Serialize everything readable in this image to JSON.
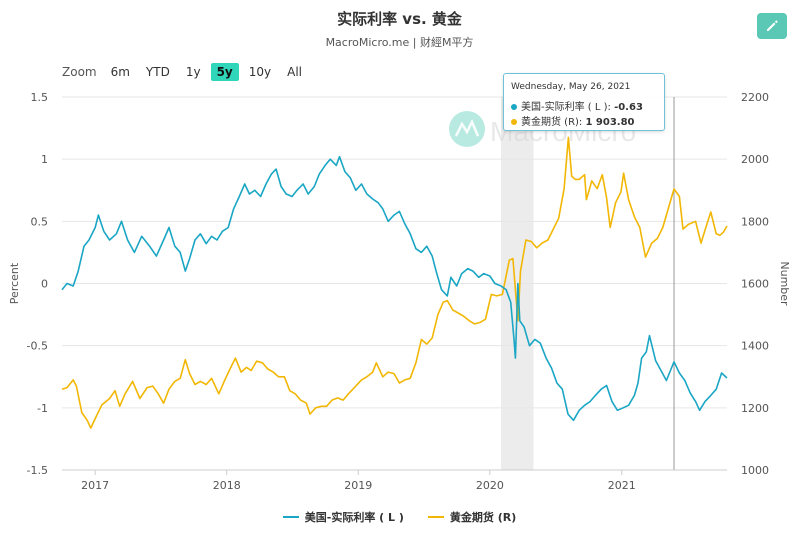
{
  "header": {
    "title": "实际利率 vs. 黄金",
    "subtitle": "MacroMicro.me | 财經M平方"
  },
  "zoom": {
    "label": "Zoom",
    "options": [
      "6m",
      "YTD",
      "1y",
      "5y",
      "10y",
      "All"
    ],
    "active": "5y"
  },
  "watermark": "MacroMicro",
  "tooltip": {
    "date": "Wednesday, May 26, 2021",
    "row1_label": "美国-实际利率 ( L ): ",
    "row1_value": "-0.63",
    "row2_label": "黄金期货 (R): ",
    "row2_value": "1 903.80"
  },
  "colors": {
    "real_rate": "#1aa6c4",
    "gold": "#f2b705",
    "accent": "#2fd6b9",
    "edit_button": "#5ac8b4"
  },
  "chart_data": {
    "type": "line",
    "left_axis": {
      "label": "Percent",
      "range": [
        -1.5,
        1.5
      ],
      "ticks": [
        "1.5",
        "1",
        "0.5",
        "0",
        "-0.5",
        "-1",
        "-1.5"
      ]
    },
    "right_axis": {
      "label": "Number",
      "range": [
        1000,
        2200
      ],
      "ticks": [
        "2200",
        "2000",
        "1800",
        "1600",
        "1400",
        "1200",
        "1000"
      ]
    },
    "x_range": [
      "2016-10-01",
      "2021-10-20"
    ],
    "x_ticks": [
      "2017",
      "2018",
      "2019",
      "2020",
      "2021"
    ],
    "shaded_region": [
      "2020-02-01",
      "2020-05-01"
    ],
    "crosshair_date": "2021-05-26",
    "series": [
      {
        "name": "美国-实际利率 ( L )",
        "axis": "left",
        "points": [
          [
            "2016-10-01",
            -0.05
          ],
          [
            "2016-10-15",
            0.0
          ],
          [
            "2016-11-01",
            -0.02
          ],
          [
            "2016-11-15",
            0.1
          ],
          [
            "2016-12-01",
            0.3
          ],
          [
            "2016-12-15",
            0.35
          ],
          [
            "2017-01-01",
            0.45
          ],
          [
            "2017-01-10",
            0.55
          ],
          [
            "2017-01-25",
            0.42
          ],
          [
            "2017-02-10",
            0.35
          ],
          [
            "2017-03-01",
            0.4
          ],
          [
            "2017-03-15",
            0.5
          ],
          [
            "2017-04-01",
            0.35
          ],
          [
            "2017-04-20",
            0.25
          ],
          [
            "2017-05-10",
            0.38
          ],
          [
            "2017-06-01",
            0.3
          ],
          [
            "2017-06-20",
            0.22
          ],
          [
            "2017-07-10",
            0.35
          ],
          [
            "2017-07-25",
            0.45
          ],
          [
            "2017-08-10",
            0.3
          ],
          [
            "2017-08-25",
            0.25
          ],
          [
            "2017-09-08",
            0.1
          ],
          [
            "2017-09-20",
            0.2
          ],
          [
            "2017-10-05",
            0.35
          ],
          [
            "2017-10-20",
            0.4
          ],
          [
            "2017-11-05",
            0.32
          ],
          [
            "2017-11-20",
            0.38
          ],
          [
            "2017-12-05",
            0.35
          ],
          [
            "2017-12-20",
            0.42
          ],
          [
            "2018-01-05",
            0.45
          ],
          [
            "2018-01-20",
            0.6
          ],
          [
            "2018-02-05",
            0.7
          ],
          [
            "2018-02-20",
            0.8
          ],
          [
            "2018-03-05",
            0.72
          ],
          [
            "2018-03-20",
            0.75
          ],
          [
            "2018-04-05",
            0.7
          ],
          [
            "2018-04-20",
            0.8
          ],
          [
            "2018-05-05",
            0.88
          ],
          [
            "2018-05-18",
            0.92
          ],
          [
            "2018-06-01",
            0.78
          ],
          [
            "2018-06-15",
            0.72
          ],
          [
            "2018-07-01",
            0.7
          ],
          [
            "2018-07-15",
            0.75
          ],
          [
            "2018-08-01",
            0.8
          ],
          [
            "2018-08-15",
            0.72
          ],
          [
            "2018-09-01",
            0.78
          ],
          [
            "2018-09-15",
            0.88
          ],
          [
            "2018-10-01",
            0.95
          ],
          [
            "2018-10-15",
            1.0
          ],
          [
            "2018-11-01",
            0.95
          ],
          [
            "2018-11-10",
            1.02
          ],
          [
            "2018-11-25",
            0.9
          ],
          [
            "2018-12-10",
            0.85
          ],
          [
            "2018-12-25",
            0.75
          ],
          [
            "2019-01-10",
            0.8
          ],
          [
            "2019-01-25",
            0.72
          ],
          [
            "2019-02-10",
            0.68
          ],
          [
            "2019-02-25",
            0.65
          ],
          [
            "2019-03-10",
            0.6
          ],
          [
            "2019-03-25",
            0.5
          ],
          [
            "2019-04-10",
            0.55
          ],
          [
            "2019-04-25",
            0.58
          ],
          [
            "2019-05-10",
            0.48
          ],
          [
            "2019-05-25",
            0.4
          ],
          [
            "2019-06-10",
            0.28
          ],
          [
            "2019-06-25",
            0.25
          ],
          [
            "2019-07-10",
            0.3
          ],
          [
            "2019-07-25",
            0.22
          ],
          [
            "2019-08-05",
            0.1
          ],
          [
            "2019-08-20",
            -0.05
          ],
          [
            "2019-09-05",
            -0.1
          ],
          [
            "2019-09-15",
            0.05
          ],
          [
            "2019-10-01",
            -0.02
          ],
          [
            "2019-10-15",
            0.08
          ],
          [
            "2019-11-01",
            0.12
          ],
          [
            "2019-11-15",
            0.1
          ],
          [
            "2019-12-01",
            0.05
          ],
          [
            "2019-12-15",
            0.08
          ],
          [
            "2020-01-01",
            0.06
          ],
          [
            "2020-01-15",
            0.0
          ],
          [
            "2020-02-01",
            -0.02
          ],
          [
            "2020-02-15",
            -0.05
          ],
          [
            "2020-02-28",
            -0.15
          ],
          [
            "2020-03-08",
            -0.45
          ],
          [
            "2020-03-12",
            -0.6
          ],
          [
            "2020-03-19",
            0.0
          ],
          [
            "2020-03-24",
            -0.3
          ],
          [
            "2020-04-05",
            -0.35
          ],
          [
            "2020-04-20",
            -0.5
          ],
          [
            "2020-05-05",
            -0.45
          ],
          [
            "2020-05-20",
            -0.48
          ],
          [
            "2020-06-05",
            -0.6
          ],
          [
            "2020-06-20",
            -0.68
          ],
          [
            "2020-07-05",
            -0.8
          ],
          [
            "2020-07-20",
            -0.85
          ],
          [
            "2020-08-05",
            -1.05
          ],
          [
            "2020-08-20",
            -1.1
          ],
          [
            "2020-09-05",
            -1.02
          ],
          [
            "2020-09-20",
            -0.98
          ],
          [
            "2020-10-05",
            -0.95
          ],
          [
            "2020-10-20",
            -0.9
          ],
          [
            "2020-11-05",
            -0.85
          ],
          [
            "2020-11-20",
            -0.82
          ],
          [
            "2020-12-05",
            -0.95
          ],
          [
            "2020-12-20",
            -1.02
          ],
          [
            "2021-01-05",
            -1.0
          ],
          [
            "2021-01-20",
            -0.98
          ],
          [
            "2021-02-05",
            -0.9
          ],
          [
            "2021-02-15",
            -0.8
          ],
          [
            "2021-02-25",
            -0.6
          ],
          [
            "2021-03-10",
            -0.55
          ],
          [
            "2021-03-19",
            -0.42
          ],
          [
            "2021-04-05",
            -0.62
          ],
          [
            "2021-04-20",
            -0.7
          ],
          [
            "2021-05-05",
            -0.78
          ],
          [
            "2021-05-26",
            -0.63
          ],
          [
            "2021-06-10",
            -0.72
          ],
          [
            "2021-06-25",
            -0.78
          ],
          [
            "2021-07-10",
            -0.88
          ],
          [
            "2021-07-25",
            -0.95
          ],
          [
            "2021-08-05",
            -1.02
          ],
          [
            "2021-08-20",
            -0.95
          ],
          [
            "2021-09-05",
            -0.9
          ],
          [
            "2021-09-20",
            -0.85
          ],
          [
            "2021-10-05",
            -0.72
          ],
          [
            "2021-10-20",
            -0.76
          ]
        ]
      },
      {
        "name": "黄金期货 (R)",
        "axis": "right",
        "points": [
          [
            "2016-10-01",
            1260
          ],
          [
            "2016-10-15",
            1265
          ],
          [
            "2016-11-01",
            1290
          ],
          [
            "2016-11-10",
            1270
          ],
          [
            "2016-11-25",
            1185
          ],
          [
            "2016-12-10",
            1160
          ],
          [
            "2016-12-20",
            1135
          ],
          [
            "2017-01-05",
            1175
          ],
          [
            "2017-01-20",
            1210
          ],
          [
            "2017-02-10",
            1230
          ],
          [
            "2017-02-25",
            1255
          ],
          [
            "2017-03-10",
            1205
          ],
          [
            "2017-03-25",
            1245
          ],
          [
            "2017-04-15",
            1285
          ],
          [
            "2017-05-05",
            1230
          ],
          [
            "2017-05-25",
            1265
          ],
          [
            "2017-06-10",
            1270
          ],
          [
            "2017-06-25",
            1245
          ],
          [
            "2017-07-10",
            1215
          ],
          [
            "2017-07-25",
            1260
          ],
          [
            "2017-08-10",
            1285
          ],
          [
            "2017-08-25",
            1295
          ],
          [
            "2017-09-08",
            1355
          ],
          [
            "2017-09-20",
            1310
          ],
          [
            "2017-10-05",
            1275
          ],
          [
            "2017-10-20",
            1285
          ],
          [
            "2017-11-05",
            1275
          ],
          [
            "2017-11-20",
            1295
          ],
          [
            "2017-12-10",
            1245
          ],
          [
            "2017-12-25",
            1285
          ],
          [
            "2018-01-10",
            1325
          ],
          [
            "2018-01-25",
            1360
          ],
          [
            "2018-02-10",
            1315
          ],
          [
            "2018-02-25",
            1330
          ],
          [
            "2018-03-10",
            1320
          ],
          [
            "2018-03-25",
            1350
          ],
          [
            "2018-04-10",
            1345
          ],
          [
            "2018-04-25",
            1325
          ],
          [
            "2018-05-10",
            1315
          ],
          [
            "2018-05-25",
            1300
          ],
          [
            "2018-06-10",
            1300
          ],
          [
            "2018-06-25",
            1255
          ],
          [
            "2018-07-10",
            1245
          ],
          [
            "2018-07-25",
            1225
          ],
          [
            "2018-08-10",
            1215
          ],
          [
            "2018-08-20",
            1180
          ],
          [
            "2018-09-05",
            1200
          ],
          [
            "2018-09-20",
            1205
          ],
          [
            "2018-10-05",
            1205
          ],
          [
            "2018-10-20",
            1225
          ],
          [
            "2018-11-05",
            1232
          ],
          [
            "2018-11-20",
            1225
          ],
          [
            "2018-12-05",
            1245
          ],
          [
            "2018-12-25",
            1270
          ],
          [
            "2019-01-10",
            1290
          ],
          [
            "2019-01-25",
            1300
          ],
          [
            "2019-02-10",
            1315
          ],
          [
            "2019-02-20",
            1345
          ],
          [
            "2019-03-10",
            1300
          ],
          [
            "2019-03-25",
            1315
          ],
          [
            "2019-04-10",
            1310
          ],
          [
            "2019-04-25",
            1280
          ],
          [
            "2019-05-10",
            1290
          ],
          [
            "2019-05-25",
            1295
          ],
          [
            "2019-06-10",
            1345
          ],
          [
            "2019-06-25",
            1420
          ],
          [
            "2019-07-10",
            1405
          ],
          [
            "2019-07-25",
            1425
          ],
          [
            "2019-08-10",
            1500
          ],
          [
            "2019-08-25",
            1540
          ],
          [
            "2019-09-05",
            1545
          ],
          [
            "2019-09-20",
            1515
          ],
          [
            "2019-10-05",
            1505
          ],
          [
            "2019-10-20",
            1495
          ],
          [
            "2019-11-05",
            1480
          ],
          [
            "2019-11-20",
            1470
          ],
          [
            "2019-12-05",
            1475
          ],
          [
            "2019-12-20",
            1485
          ],
          [
            "2020-01-05",
            1565
          ],
          [
            "2020-01-20",
            1560
          ],
          [
            "2020-02-05",
            1565
          ],
          [
            "2020-02-24",
            1675
          ],
          [
            "2020-03-05",
            1680
          ],
          [
            "2020-03-12",
            1580
          ],
          [
            "2020-03-19",
            1480
          ],
          [
            "2020-03-26",
            1640
          ],
          [
            "2020-04-10",
            1740
          ],
          [
            "2020-04-25",
            1735
          ],
          [
            "2020-05-10",
            1715
          ],
          [
            "2020-05-25",
            1730
          ],
          [
            "2020-06-10",
            1740
          ],
          [
            "2020-06-25",
            1775
          ],
          [
            "2020-07-10",
            1810
          ],
          [
            "2020-07-25",
            1905
          ],
          [
            "2020-08-06",
            2070
          ],
          [
            "2020-08-15",
            1945
          ],
          [
            "2020-08-25",
            1935
          ],
          [
            "2020-09-05",
            1935
          ],
          [
            "2020-09-20",
            1950
          ],
          [
            "2020-09-25",
            1870
          ],
          [
            "2020-10-10",
            1930
          ],
          [
            "2020-10-25",
            1905
          ],
          [
            "2020-11-08",
            1950
          ],
          [
            "2020-11-20",
            1875
          ],
          [
            "2020-11-30",
            1780
          ],
          [
            "2020-12-15",
            1860
          ],
          [
            "2020-12-30",
            1895
          ],
          [
            "2021-01-06",
            1955
          ],
          [
            "2021-01-20",
            1870
          ],
          [
            "2021-02-05",
            1815
          ],
          [
            "2021-02-20",
            1780
          ],
          [
            "2021-03-08",
            1685
          ],
          [
            "2021-03-25",
            1730
          ],
          [
            "2021-04-10",
            1745
          ],
          [
            "2021-04-25",
            1780
          ],
          [
            "2021-05-10",
            1840
          ],
          [
            "2021-05-26",
            1904
          ],
          [
            "2021-06-10",
            1880
          ],
          [
            "2021-06-20",
            1775
          ],
          [
            "2021-07-05",
            1790
          ],
          [
            "2021-07-25",
            1800
          ],
          [
            "2021-08-09",
            1730
          ],
          [
            "2021-08-25",
            1790
          ],
          [
            "2021-09-05",
            1830
          ],
          [
            "2021-09-20",
            1760
          ],
          [
            "2021-09-30",
            1755
          ],
          [
            "2021-10-10",
            1765
          ],
          [
            "2021-10-20",
            1785
          ]
        ]
      }
    ]
  }
}
